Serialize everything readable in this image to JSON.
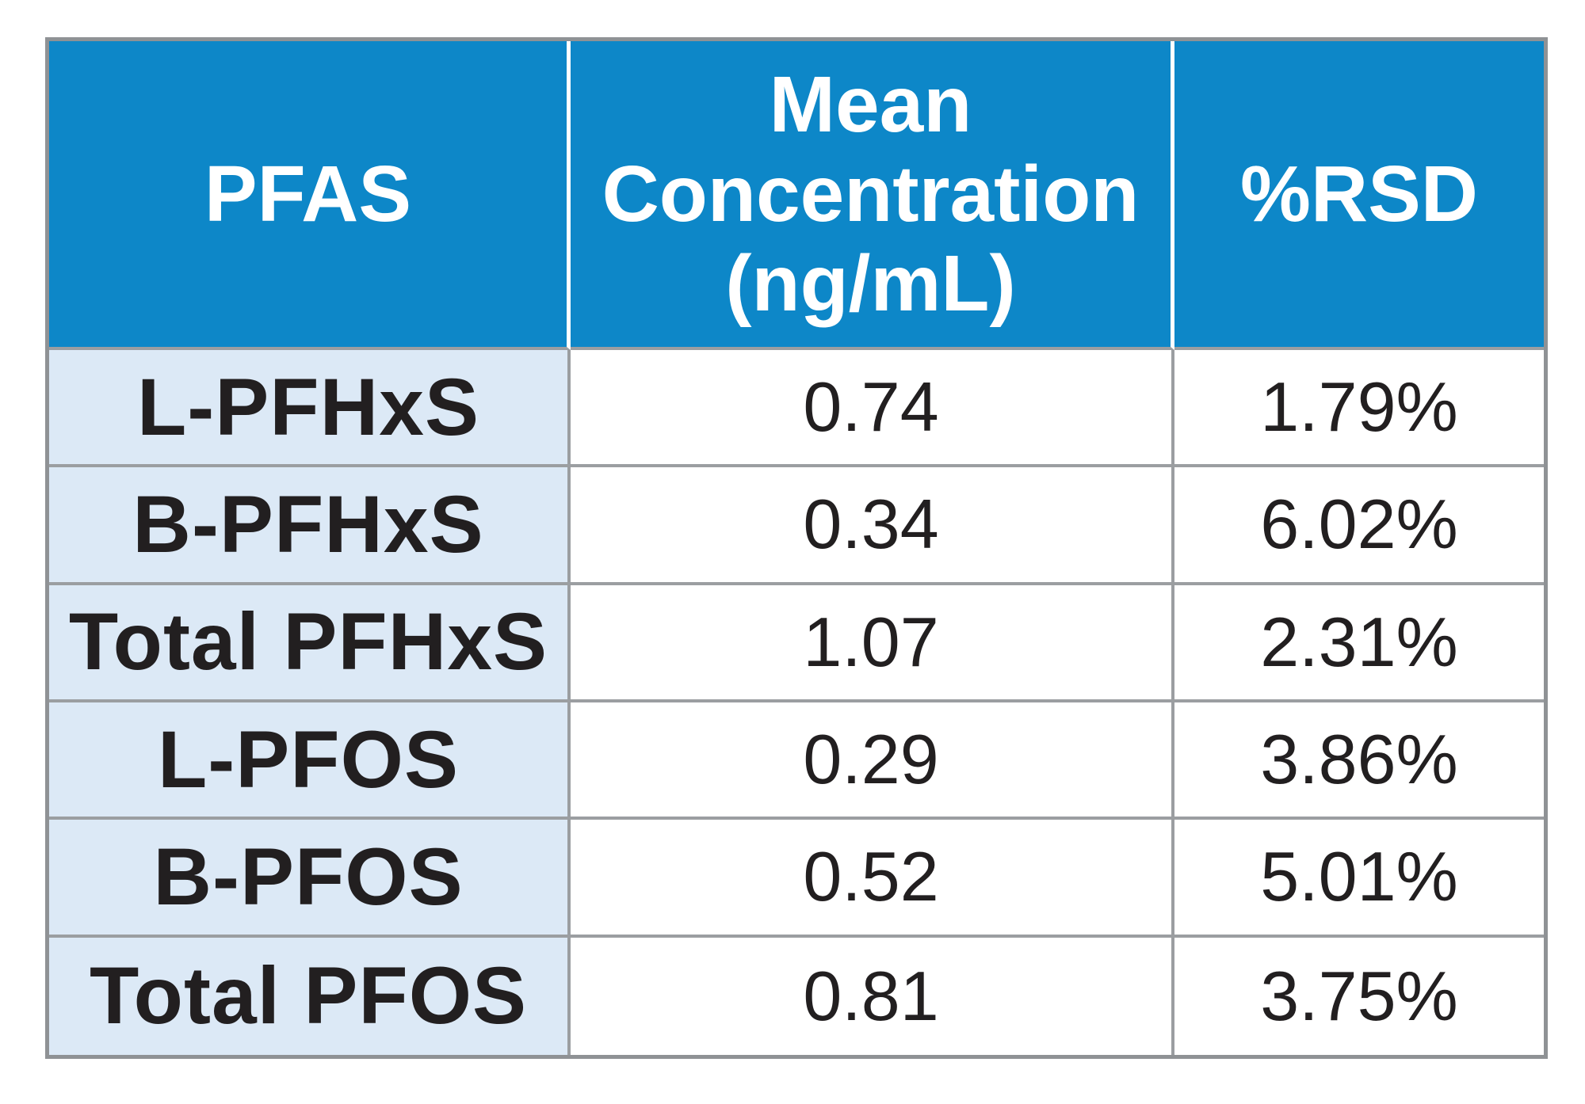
{
  "table": {
    "header": {
      "pfas": "PFAS",
      "mean_lines": [
        "Mean",
        "Concentration",
        "(ng/mL)"
      ],
      "rsd": "%RSD"
    },
    "rows": [
      {
        "pfas": "L-PFHxS",
        "mean": "0.74",
        "rsd": "1.79%"
      },
      {
        "pfas": "B-PFHxS",
        "mean": "0.34",
        "rsd": "6.02%"
      },
      {
        "pfas": "Total PFHxS",
        "mean": "1.07",
        "rsd": "2.31%"
      },
      {
        "pfas": "L-PFOS",
        "mean": "0.29",
        "rsd": "3.86%"
      },
      {
        "pfas": "B-PFOS",
        "mean": "0.52",
        "rsd": "5.01%"
      },
      {
        "pfas": "Total PFOS",
        "mean": "0.81",
        "rsd": "3.75%"
      }
    ],
    "colors": {
      "header_background": "#0d87c8",
      "header_text": "#ffffff",
      "label_column_background": "#dce9f6",
      "zebra_gray": "#f0eff1",
      "zebra_white": "#ffffff",
      "grid_border": "#9b9ea1",
      "text": "#221f20"
    }
  },
  "chart_data": {
    "type": "table",
    "columns": [
      "PFAS",
      "Mean Concentration (ng/mL)",
      "%RSD"
    ],
    "rows": [
      [
        "L-PFHxS",
        0.74,
        "1.79%"
      ],
      [
        "B-PFHxS",
        0.34,
        "6.02%"
      ],
      [
        "Total PFHxS",
        1.07,
        "2.31%"
      ],
      [
        "L-PFOS",
        0.29,
        "3.86%"
      ],
      [
        "B-PFOS",
        0.52,
        "5.01%"
      ],
      [
        "Total PFOS",
        0.81,
        "3.75%"
      ]
    ]
  }
}
